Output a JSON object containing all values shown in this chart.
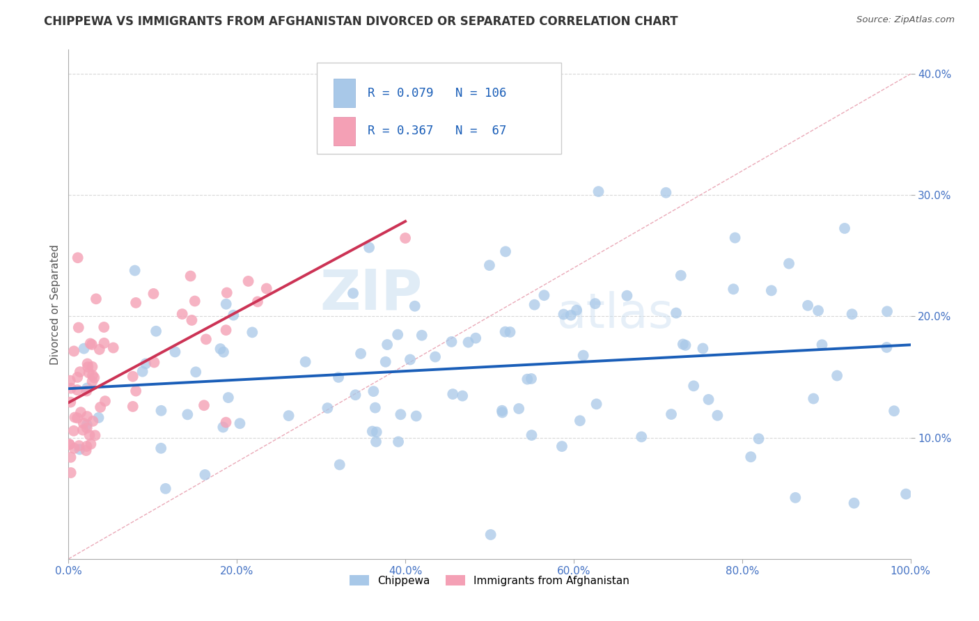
{
  "title": "CHIPPEWA VS IMMIGRANTS FROM AFGHANISTAN DIVORCED OR SEPARATED CORRELATION CHART",
  "source_text": "Source: ZipAtlas.com",
  "ylabel": "Divorced or Separated",
  "legend_series1_label": "Chippewa",
  "legend_series2_label": "Immigrants from Afghanistan",
  "series1_color": "#a8c8e8",
  "series2_color": "#f4a0b5",
  "trendline1_color": "#1a5eb8",
  "trendline2_color": "#cc3355",
  "ref_line_color": "#e8a0b0",
  "R1": 0.079,
  "N1": 106,
  "R2": 0.367,
  "N2": 67,
  "xlim": [
    0.0,
    1.0
  ],
  "ylim": [
    0.0,
    0.42
  ],
  "xticks": [
    0.0,
    0.2,
    0.4,
    0.6,
    0.8,
    1.0
  ],
  "yticks": [
    0.1,
    0.2,
    0.3,
    0.4
  ],
  "xticklabels": [
    "0.0%",
    "20.0%",
    "40.0%",
    "60.0%",
    "80.0%",
    "100.0%"
  ],
  "yticklabels": [
    "10.0%",
    "20.0%",
    "30.0%",
    "40.0%"
  ],
  "watermark_zip": "ZIP",
  "watermark_atlas": "atlas",
  "title_fontsize": 12,
  "tick_color": "#4472c4",
  "background_color": "#ffffff",
  "grid_color": "#d8d8d8"
}
